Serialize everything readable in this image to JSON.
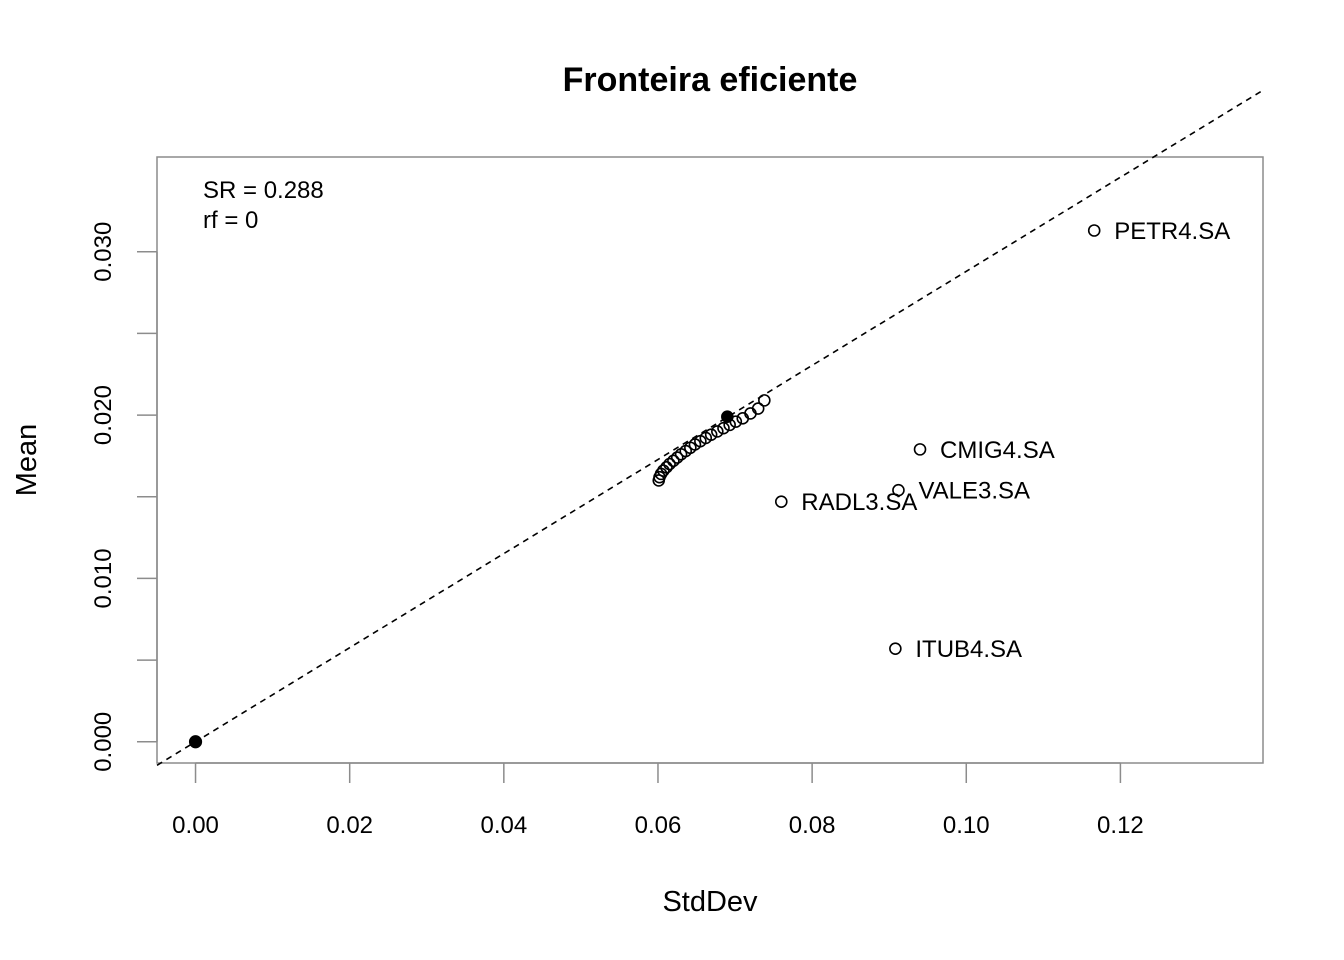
{
  "chart_data": {
    "type": "scatter",
    "title": "Fronteira eficiente",
    "xlabel": "StdDev",
    "ylabel": "Mean",
    "xlim": [
      -0.005,
      0.1385
    ],
    "ylim": [
      -0.0013,
      0.0358
    ],
    "x_ticks": [
      "0.00",
      "0.02",
      "0.04",
      "0.06",
      "0.08",
      "0.10",
      "0.12"
    ],
    "x_tick_values": [
      0,
      0.02,
      0.04,
      0.06,
      0.08,
      0.1,
      0.12
    ],
    "y_ticks": [
      "0.000",
      "0.010",
      "0.020",
      "0.030"
    ],
    "y_tick_values": [
      0,
      0.01,
      0.02,
      0.03
    ],
    "y_minor_tick_values": [
      0.005,
      0.015,
      0.025
    ],
    "annotations": [
      "SR = 0.288",
      "rf = 0"
    ],
    "tangent_line": {
      "intercept": 0,
      "slope": 0.288,
      "style": "dashed"
    },
    "risk_free_point": {
      "x": 0.0,
      "y": 0.0
    },
    "assets": [
      {
        "name": "PETR4.SA",
        "x": 0.1166,
        "y": 0.0313
      },
      {
        "name": "CMIG4.SA",
        "x": 0.094,
        "y": 0.0179
      },
      {
        "name": "VALE3.SA",
        "x": 0.0912,
        "y": 0.0154
      },
      {
        "name": "RADL3.SA",
        "x": 0.076,
        "y": 0.0147
      },
      {
        "name": "ITUB4.SA",
        "x": 0.0908,
        "y": 0.0057
      }
    ],
    "frontier": [
      {
        "x": 0.0601,
        "y": 0.016
      },
      {
        "x": 0.0602,
        "y": 0.0162
      },
      {
        "x": 0.0604,
        "y": 0.0164
      },
      {
        "x": 0.0607,
        "y": 0.0166
      },
      {
        "x": 0.0611,
        "y": 0.0168
      },
      {
        "x": 0.0615,
        "y": 0.017
      },
      {
        "x": 0.062,
        "y": 0.0172
      },
      {
        "x": 0.0625,
        "y": 0.0174
      },
      {
        "x": 0.063,
        "y": 0.0176
      },
      {
        "x": 0.0636,
        "y": 0.0178
      },
      {
        "x": 0.0642,
        "y": 0.018
      },
      {
        "x": 0.0648,
        "y": 0.0182
      },
      {
        "x": 0.0655,
        "y": 0.0184
      },
      {
        "x": 0.0662,
        "y": 0.0186
      },
      {
        "x": 0.0669,
        "y": 0.0188
      },
      {
        "x": 0.0677,
        "y": 0.019
      },
      {
        "x": 0.0685,
        "y": 0.0192
      },
      {
        "x": 0.0693,
        "y": 0.0194
      },
      {
        "x": 0.0701,
        "y": 0.0196
      },
      {
        "x": 0.071,
        "y": 0.0198
      },
      {
        "x": 0.072,
        "y": 0.0201
      },
      {
        "x": 0.073,
        "y": 0.0204
      },
      {
        "x": 0.0738,
        "y": 0.0209
      }
    ],
    "tangency_portfolio": {
      "x": 0.069,
      "y": 0.0199
    },
    "grid": false
  }
}
